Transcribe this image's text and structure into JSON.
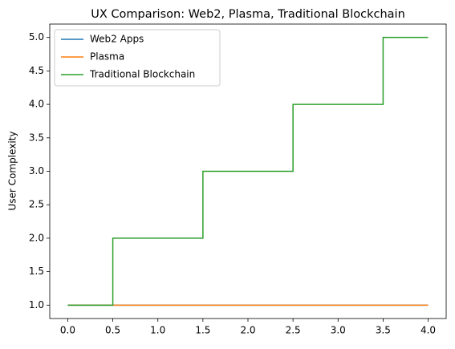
{
  "chart_data": {
    "type": "line",
    "step": "mid",
    "title": "UX Comparison: Web2, Plasma, Traditional Blockchain",
    "y_label": "User Complexity",
    "x": [
      0,
      1,
      2,
      3,
      4
    ],
    "series": [
      {
        "name": "Web2 Apps",
        "color": "#1f77b4",
        "values": [
          1,
          1,
          1,
          1,
          1
        ]
      },
      {
        "name": "Plasma",
        "color": "#ff7f0e",
        "values": [
          1,
          1,
          1,
          1,
          1
        ]
      },
      {
        "name": "Traditional Blockchain",
        "color": "#2ca02c",
        "values": [
          1,
          2,
          3,
          4,
          5
        ]
      }
    ],
    "xlim": [
      -0.2,
      4.2
    ],
    "xticks": [
      {
        "value": 0,
        "label": "0.0"
      },
      0.5,
      {
        "value": 1,
        "label": "1.0"
      },
      1.5,
      {
        "value": 2,
        "label": "2.0"
      },
      2.5,
      {
        "value": 3,
        "label": "3.0"
      },
      3.5,
      {
        "value": 4,
        "label": "4.0"
      }
    ],
    "ylim": [
      0.8,
      5.2
    ],
    "yticks": [
      {
        "value": 1,
        "label": "1.0"
      },
      1.5,
      {
        "value": 2,
        "label": "2.0"
      },
      2.5,
      {
        "value": 3,
        "label": "3.0"
      },
      3.5,
      {
        "value": 4,
        "label": "4.0"
      },
      4.5,
      {
        "value": 5,
        "label": "5.0"
      }
    ],
    "legend": "upper left"
  }
}
